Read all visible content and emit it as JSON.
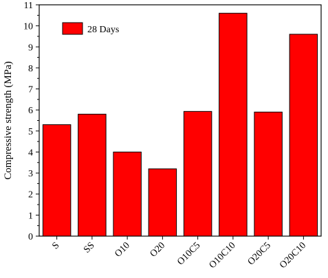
{
  "chart_data": {
    "type": "bar",
    "categories": [
      "S",
      "SS",
      "O10",
      "O20",
      "O10C5",
      "O10C10",
      "O20C5",
      "O20C10"
    ],
    "series": [
      {
        "name": "28 Days",
        "values": [
          5.3,
          5.8,
          4.0,
          3.2,
          5.93,
          10.6,
          5.9,
          9.6
        ],
        "color": "#ff0000"
      }
    ],
    "title": "",
    "xlabel": "",
    "ylabel": "Compressive strength (MPa)",
    "ylim": [
      0,
      11
    ],
    "yticks": [
      0,
      1,
      2,
      3,
      4,
      5,
      6,
      7,
      8,
      9,
      10,
      11
    ],
    "grid": false,
    "legend": "top-left",
    "bar_outline_color": "#000000"
  }
}
